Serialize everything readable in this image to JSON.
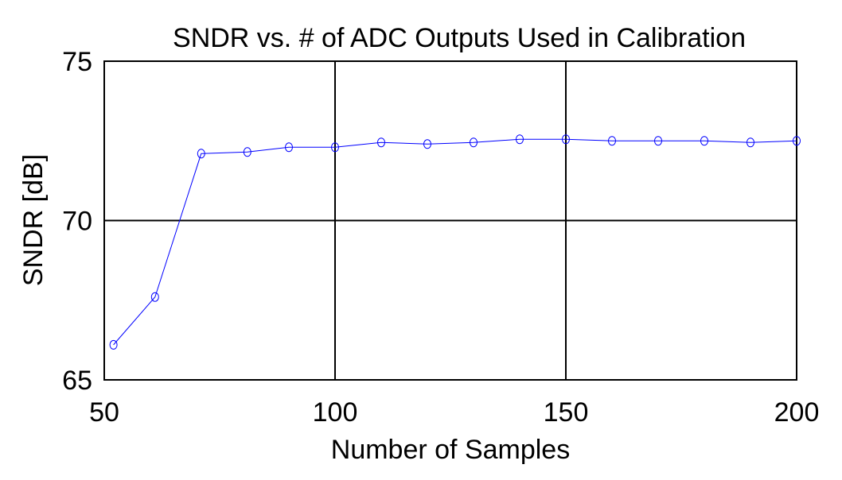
{
  "chart_data": {
    "type": "line",
    "title": "SNDR vs. # of ADC Outputs Used in Calibration",
    "xlabel": "Number of Samples",
    "ylabel": "SNDR [dB]",
    "xlim": [
      50,
      200
    ],
    "ylim": [
      65,
      75
    ],
    "xticks": [
      "50",
      "100",
      "150",
      "200"
    ],
    "yticks": [
      "65",
      "70",
      "75"
    ],
    "grid": true,
    "legend": "none",
    "series": [
      {
        "color": "#0000ff",
        "marker": "circle",
        "x": [
          52,
          61,
          71,
          81,
          90,
          100,
          110,
          120,
          130,
          140,
          150,
          160,
          170,
          180,
          190,
          200
        ],
        "y": [
          66.1,
          67.6,
          72.1,
          72.15,
          72.3,
          72.3,
          72.45,
          72.4,
          72.45,
          72.55,
          72.55,
          72.5,
          72.5,
          72.5,
          72.45,
          72.5
        ]
      }
    ]
  }
}
